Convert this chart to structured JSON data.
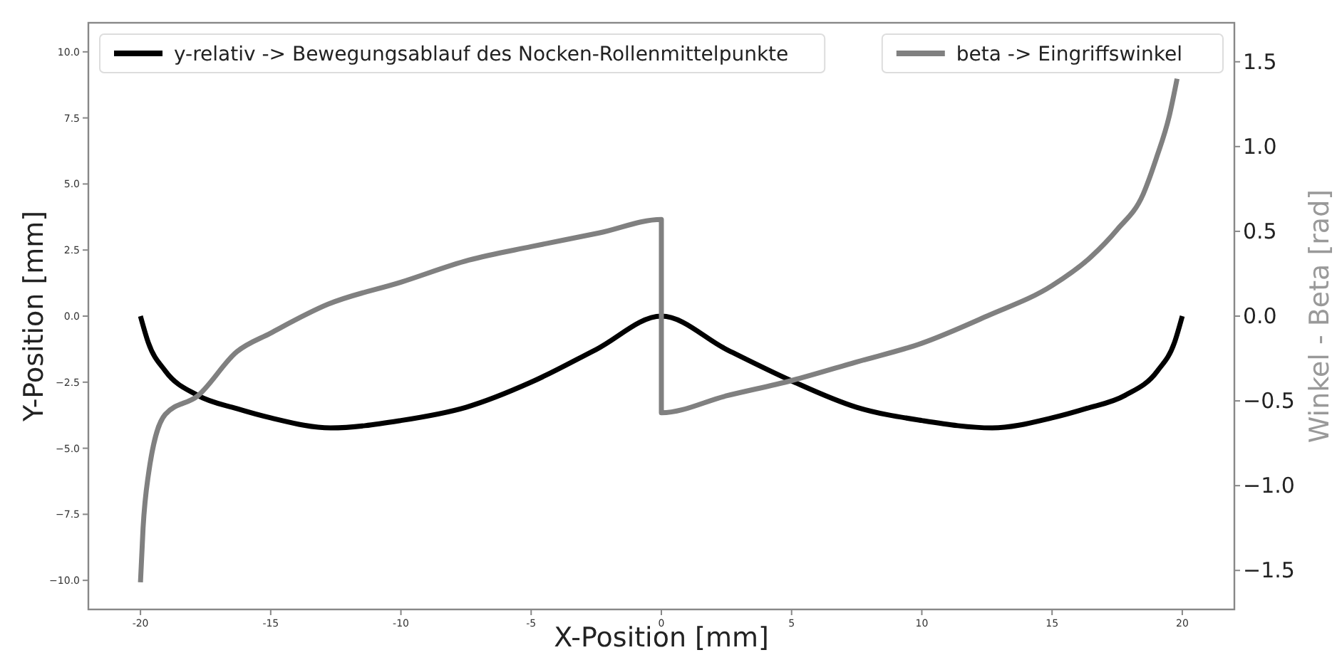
{
  "chart_data": {
    "type": "line",
    "xlabel": "X-Position [mm]",
    "ylabel": "Y-Position [mm]",
    "y2label": "Winkel - Beta [rad]",
    "xlim": [
      -22,
      22
    ],
    "xticks": [
      -20,
      -15,
      -10,
      -5,
      0,
      5,
      10,
      15,
      20
    ],
    "ylim": [
      -11.1,
      11.1
    ],
    "yticks": [
      {
        "value": -10,
        "label": "−10.0"
      },
      {
        "value": -7.5,
        "label": "−7.5"
      },
      {
        "value": -5,
        "label": "−5.0"
      },
      {
        "value": -2.5,
        "label": "−2.5"
      },
      {
        "value": 0,
        "label": "0.0"
      },
      {
        "value": 2.5,
        "label": "2.5"
      },
      {
        "value": 5,
        "label": "5.0"
      },
      {
        "value": 7.5,
        "label": "7.5"
      },
      {
        "value": 10,
        "label": "10.0"
      }
    ],
    "y2lim": [
      -1.73,
      1.73
    ],
    "y2ticks": [
      {
        "value": -1.5,
        "label": "−1.5"
      },
      {
        "value": -1,
        "label": "−1.0"
      },
      {
        "value": -0.5,
        "label": "−0.5"
      },
      {
        "value": 0,
        "label": "0.0"
      },
      {
        "value": 0.5,
        "label": "0.5"
      },
      {
        "value": 1,
        "label": "1.0"
      },
      {
        "value": 1.5,
        "label": "1.5"
      }
    ],
    "legend": "top",
    "grid": false,
    "marker": "none",
    "line_style": "solid",
    "series": [
      {
        "name": "y-relativ -> Bewegungsablauf des Nocken-Rollenmittelpunkte",
        "color": "#000000",
        "x": [
          -20,
          -19.7,
          -19.05,
          -17.8,
          -16.3,
          -15,
          -12.7,
          -10,
          -7.5,
          -5,
          -2.5,
          0,
          2.5,
          5,
          7.5,
          10,
          12.7,
          15,
          16.3,
          17.8,
          19.05,
          19.7,
          20
        ],
        "values": [
          0,
          -1.0,
          -2.07,
          -3.0,
          -3.5,
          -3.85,
          -4.23,
          -3.95,
          -3.45,
          -2.5,
          -1.26,
          0,
          -1.26,
          -2.45,
          -3.45,
          -3.95,
          -4.23,
          -3.85,
          -3.5,
          -3.0,
          -2.07,
          -1.0,
          0
        ]
      },
      {
        "name": "beta -> Eingriffswinkel",
        "color": "#808080",
        "axis": "y2",
        "x": [
          -20,
          -19.9,
          -19.7,
          -19.05,
          -17.8,
          -16.3,
          -15,
          -12.8,
          -10,
          -7.4,
          -5,
          -2.4,
          0,
          0,
          2.5,
          5,
          7.5,
          10,
          12.5,
          15,
          16.5,
          17.5,
          18.5,
          19,
          19.5,
          19.8
        ],
        "values": [
          -1.57,
          -1.25,
          -0.94,
          -0.58,
          -0.47,
          -0.21,
          -0.1,
          0.07,
          0.2,
          0.33,
          0.41,
          0.49,
          0.57,
          -0.57,
          -0.47,
          -0.38,
          -0.27,
          -0.16,
          0.0,
          0.18,
          0.35,
          0.51,
          0.72,
          0.93,
          1.18,
          1.4
        ]
      }
    ]
  }
}
